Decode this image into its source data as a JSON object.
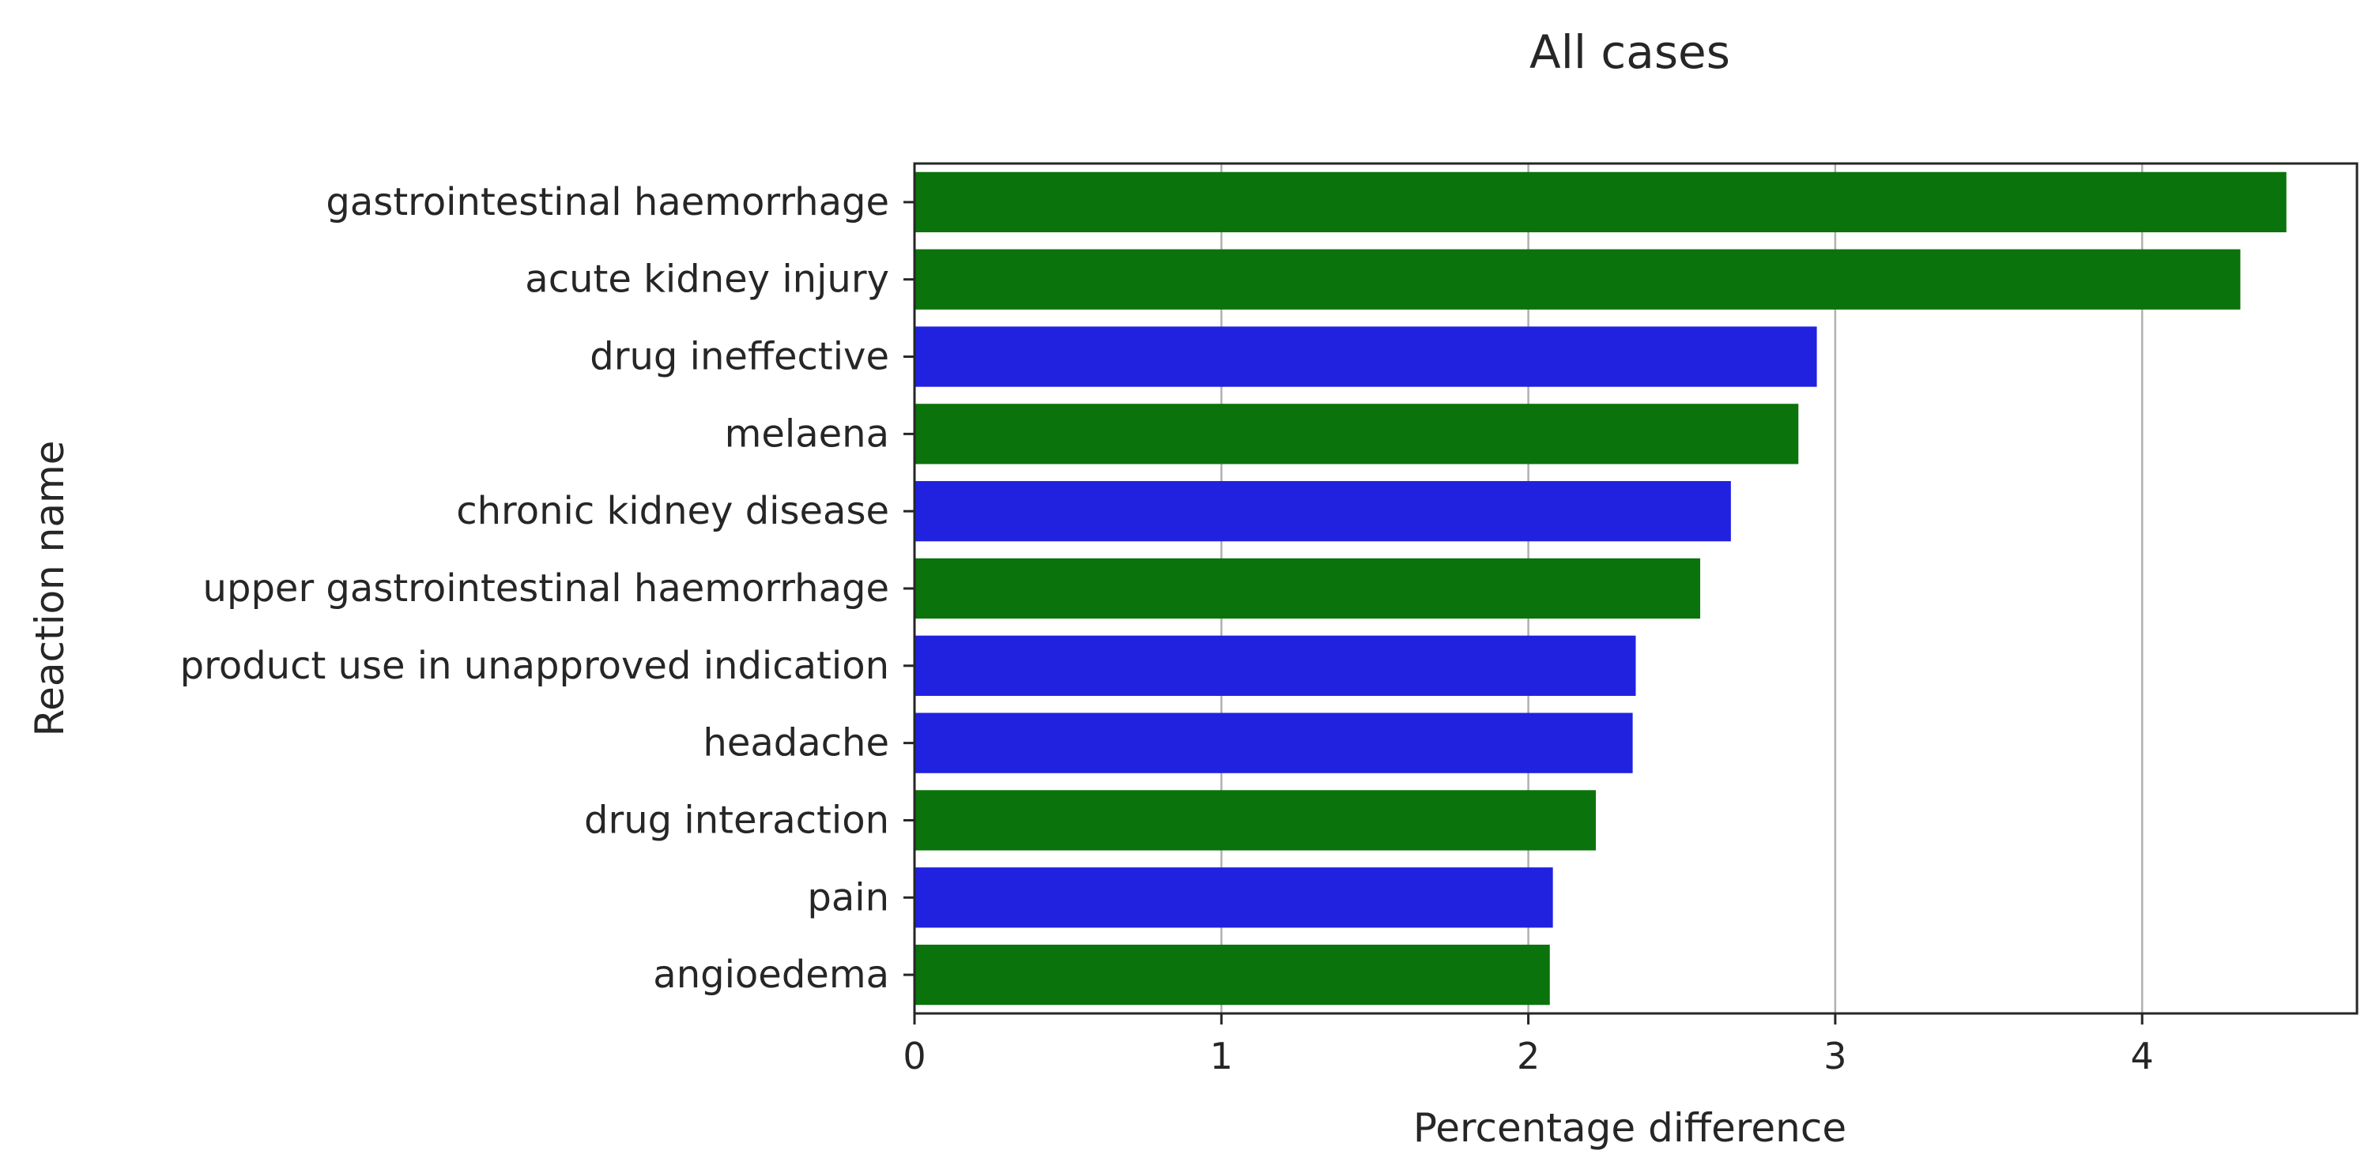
{
  "chart_data": {
    "type": "bar",
    "orientation": "horizontal",
    "title": "All cases",
    "xlabel": "Percentage difference",
    "ylabel": "Reaction name",
    "xlim": [
      0,
      4.7
    ],
    "xticks": [
      0,
      1,
      2,
      3,
      4
    ],
    "grid": "vertical",
    "categories": [
      "gastrointestinal haemorrhage",
      "acute kidney injury",
      "drug ineffective",
      "melaena",
      "chronic kidney disease",
      "upper gastrointestinal haemorrhage",
      "product use in unapproved indication",
      "headache",
      "drug interaction",
      "pain",
      "angioedema"
    ],
    "values": [
      4.47,
      4.32,
      2.94,
      2.88,
      2.66,
      2.56,
      2.35,
      2.34,
      2.22,
      2.08,
      2.07
    ],
    "groups": [
      "green",
      "green",
      "blue",
      "green",
      "blue",
      "green",
      "blue",
      "blue",
      "green",
      "blue",
      "green"
    ],
    "colors": {
      "green": "#0b730b",
      "blue": "#2121e0",
      "axis": "#262626",
      "grid": "#b0b0b0",
      "background": "#ffffff"
    }
  }
}
